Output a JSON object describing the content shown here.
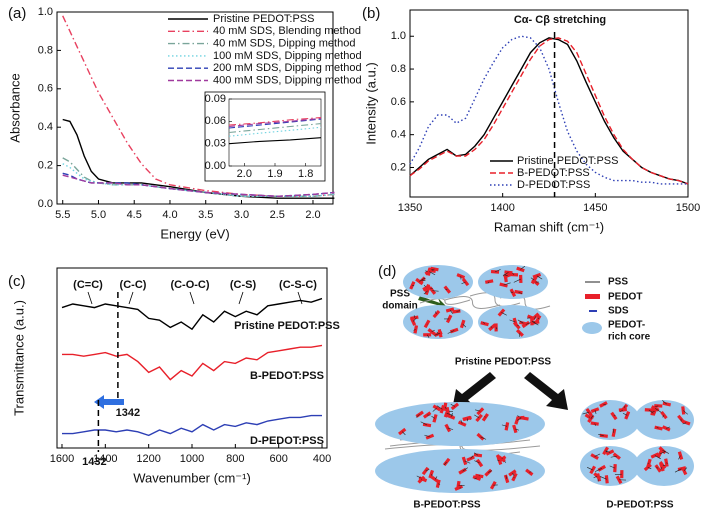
{
  "chart_data": [
    {
      "type": "line",
      "panel_label": "(a)",
      "x_label": "Energy (eV)",
      "y_label": "Absorbance",
      "x": [
        5.5,
        5.4,
        5.3,
        5.2,
        5.1,
        5.0,
        4.8,
        4.6,
        4.4,
        4.2,
        4.0,
        3.5,
        3.0,
        2.5,
        2.0,
        1.7
      ],
      "xlim": [
        5.58,
        1.72
      ],
      "xticks": [
        5.5,
        {
          "value": 5,
          "label": "5.0"
        },
        4.5,
        {
          "value": 4,
          "label": "4.0"
        },
        3.5,
        {
          "value": 3,
          "label": "3.0"
        },
        2.5,
        {
          "value": 2,
          "label": "2.0"
        }
      ],
      "ylim": [
        0,
        1.0
      ],
      "yticks": [
        {
          "value": 0,
          "label": "0.0"
        },
        0.2,
        0.4,
        0.6,
        0.8,
        {
          "value": 1,
          "label": "1.0"
        }
      ],
      "series": [
        {
          "name": "Pristine PEDOT:PSS",
          "color": "#000000",
          "style": "solid",
          "values": [
            0.44,
            0.43,
            0.36,
            0.25,
            0.17,
            0.13,
            0.11,
            0.11,
            0.11,
            0.1,
            0.09,
            0.06,
            0.04,
            0.03,
            0.03,
            0.03
          ]
        },
        {
          "name": "40 mM SDS, Blending method",
          "color": "#e8405f",
          "style": "dashdot",
          "values": [
            0.98,
            0.9,
            0.82,
            0.74,
            0.66,
            0.58,
            0.45,
            0.32,
            0.21,
            0.13,
            0.1,
            0.07,
            0.05,
            0.04,
            0.04,
            0.05
          ]
        },
        {
          "name": "40 mM SDS, Dipping method",
          "color": "#7aa59a",
          "style": "dashdot",
          "values": [
            0.24,
            0.22,
            0.18,
            0.14,
            0.12,
            0.11,
            0.1,
            0.1,
            0.1,
            0.09,
            0.08,
            0.06,
            0.04,
            0.04,
            0.04,
            0.05
          ]
        },
        {
          "name": "100 mM SDS, Dipping method",
          "color": "#6fd3e0",
          "style": "dot",
          "values": [
            0.21,
            0.19,
            0.16,
            0.13,
            0.12,
            0.11,
            0.1,
            0.1,
            0.1,
            0.09,
            0.08,
            0.06,
            0.04,
            0.04,
            0.04,
            0.05
          ]
        },
        {
          "name": "200 mM SDS, Dipping method",
          "color": "#2d3fb5",
          "style": "dash",
          "values": [
            0.16,
            0.15,
            0.13,
            0.12,
            0.11,
            0.11,
            0.11,
            0.11,
            0.1,
            0.09,
            0.08,
            0.06,
            0.05,
            0.04,
            0.05,
            0.06
          ]
        },
        {
          "name": "400 mM SDS, Dipping method",
          "color": "#a03a9e",
          "style": "dash",
          "values": [
            0.15,
            0.14,
            0.13,
            0.12,
            0.11,
            0.11,
            0.11,
            0.1,
            0.1,
            0.09,
            0.08,
            0.06,
            0.05,
            0.04,
            0.05,
            0.06
          ]
        }
      ],
      "inset": {
        "x": [
          2.05,
          1.95,
          1.85,
          1.75
        ],
        "xlim": [
          2.05,
          1.75
        ],
        "xticks": [
          {
            "value": 2,
            "label": "2.0"
          },
          1.9,
          1.8
        ],
        "ylim": [
          0,
          0.09
        ],
        "yticks": [
          {
            "value": 0,
            "label": "0.00"
          },
          0.03,
          0.06,
          0.09
        ],
        "series": [
          {
            "values": [
              0.03,
              0.033,
              0.035,
              0.038
            ]
          },
          {
            "values": [
              0.055,
              0.058,
              0.062,
              0.065
            ]
          },
          {
            "values": [
              0.045,
              0.049,
              0.053,
              0.057
            ]
          },
          {
            "values": [
              0.04,
              0.044,
              0.048,
              0.052
            ]
          },
          {
            "values": [
              0.051,
              0.055,
              0.059,
              0.063
            ]
          },
          {
            "values": [
              0.053,
              0.057,
              0.06,
              0.064
            ]
          }
        ]
      }
    },
    {
      "type": "line",
      "panel_label": "(b)",
      "x_label": "Raman shift (cm⁻¹)",
      "y_label": "Intensity (a.u.)",
      "annotation": "Cα- Cβ stretching",
      "markers": [
        1428
      ],
      "x": [
        1350,
        1355,
        1360,
        1365,
        1370,
        1375,
        1380,
        1385,
        1390,
        1395,
        1400,
        1405,
        1410,
        1415,
        1420,
        1425,
        1430,
        1435,
        1440,
        1445,
        1450,
        1455,
        1460,
        1465,
        1470,
        1475,
        1480,
        1485,
        1490,
        1495,
        1500
      ],
      "xlim": [
        1350,
        1500
      ],
      "xticks": [
        1350,
        1400,
        1450,
        1500
      ],
      "ylim": [
        0.02,
        1.16
      ],
      "yticks": [
        0.2,
        0.4,
        0.6,
        0.8,
        {
          "value": 1,
          "label": "1.0"
        }
      ],
      "series": [
        {
          "name": "Pristine PEDOT:PSS",
          "color": "#000000",
          "style": "solid",
          "values": [
            0.15,
            0.2,
            0.25,
            0.28,
            0.31,
            0.27,
            0.28,
            0.33,
            0.4,
            0.5,
            0.6,
            0.7,
            0.8,
            0.9,
            0.96,
            0.99,
            0.98,
            0.95,
            0.85,
            0.72,
            0.6,
            0.48,
            0.38,
            0.3,
            0.25,
            0.2,
            0.17,
            0.15,
            0.13,
            0.12,
            0.1
          ]
        },
        {
          "name": "B-PEDOT:PSS",
          "color": "#e8202a",
          "style": "dash",
          "values": [
            0.15,
            0.19,
            0.24,
            0.27,
            0.3,
            0.27,
            0.27,
            0.31,
            0.37,
            0.46,
            0.56,
            0.66,
            0.76,
            0.86,
            0.94,
            0.98,
            0.99,
            0.97,
            0.9,
            0.77,
            0.64,
            0.51,
            0.4,
            0.31,
            0.25,
            0.2,
            0.17,
            0.15,
            0.13,
            0.12,
            0.1
          ]
        },
        {
          "name": "D-PEDOT:PSS",
          "color": "#2d3fb5",
          "style": "dot",
          "values": [
            0.22,
            0.32,
            0.45,
            0.52,
            0.52,
            0.47,
            0.5,
            0.62,
            0.74,
            0.84,
            0.93,
            0.98,
            1.0,
            0.99,
            0.93,
            0.8,
            0.6,
            0.42,
            0.3,
            0.22,
            0.17,
            0.14,
            0.12,
            0.12,
            0.12,
            0.11,
            0.11,
            0.1,
            0.1,
            0.1,
            0.1
          ]
        }
      ]
    },
    {
      "type": "line",
      "panel_label": "(c)",
      "x_label": "Wavenumber (cm⁻¹)",
      "y_label": "Transmittance (a.u.)",
      "annotations": [
        "(C=C)",
        "(C-C)",
        "(C-O-C)",
        "(C-S)",
        "(C-S-C)"
      ],
      "markers": [
        1342,
        1432
      ],
      "x": [
        1600,
        1550,
        1500,
        1450,
        1400,
        1350,
        1300,
        1250,
        1200,
        1150,
        1100,
        1050,
        1000,
        950,
        900,
        850,
        800,
        750,
        700,
        650,
        600,
        550,
        500,
        450,
        400
      ],
      "xlim": [
        1623,
        377
      ],
      "xticks": [
        1600,
        1400,
        1200,
        1000,
        800,
        600,
        400
      ],
      "ylim": [
        0,
        1
      ],
      "series": [
        {
          "name": "Pristine PEDOT:PSS",
          "color": "#000000",
          "style": "solid",
          "values": [
            0.78,
            0.8,
            0.79,
            0.78,
            0.8,
            0.79,
            0.78,
            0.77,
            0.72,
            0.71,
            0.67,
            0.7,
            0.66,
            0.74,
            0.7,
            0.76,
            0.73,
            0.76,
            0.74,
            0.79,
            0.8,
            0.81,
            0.82,
            0.81,
            0.83
          ]
        },
        {
          "name": "B-PEDOT:PSS",
          "color": "#e8202a",
          "style": "solid",
          "values": [
            0.52,
            0.52,
            0.51,
            0.52,
            0.53,
            0.51,
            0.52,
            0.48,
            0.42,
            0.45,
            0.38,
            0.43,
            0.4,
            0.47,
            0.43,
            0.48,
            0.47,
            0.5,
            0.49,
            0.53,
            0.54,
            0.55,
            0.56,
            0.56,
            0.57
          ]
        },
        {
          "name": "D-PEDOT:PSS",
          "color": "#2d3fb5",
          "style": "solid",
          "values": [
            0.08,
            0.08,
            0.09,
            0.1,
            0.1,
            0.09,
            0.1,
            0.09,
            0.07,
            0.1,
            0.08,
            0.11,
            0.09,
            0.13,
            0.1,
            0.13,
            0.12,
            0.14,
            0.13,
            0.15,
            0.16,
            0.17,
            0.17,
            0.18,
            0.18
          ]
        }
      ]
    }
  ],
  "diagram": {
    "panel_label": "(d)",
    "pss_domain": [
      "PSS",
      "domain"
    ],
    "legend": {
      "pss": "PSS",
      "pedot": "PEDOT",
      "sds": "SDS",
      "core": [
        "PEDOT-",
        "rich core"
      ]
    },
    "states": [
      "Pristine PEDOT:PSS",
      "B-PEDOT:PSS",
      "D-PEDOT:PSS"
    ]
  }
}
